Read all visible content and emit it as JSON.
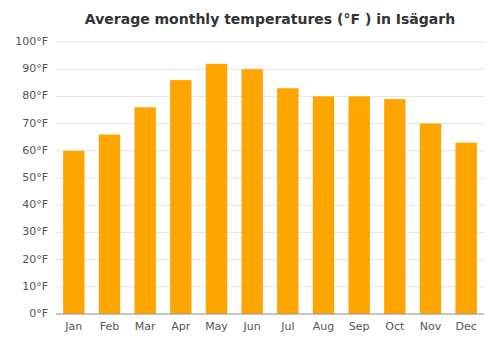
{
  "chart_data": {
    "type": "bar",
    "title": "Average monthly temperatures (°F ) in Isägarh",
    "categories": [
      "Jan",
      "Feb",
      "Mar",
      "Apr",
      "May",
      "Jun",
      "Jul",
      "Aug",
      "Sep",
      "Oct",
      "Nov",
      "Dec"
    ],
    "values": [
      60,
      66,
      76,
      86,
      92,
      90,
      83,
      80,
      80,
      79,
      70,
      63
    ],
    "color": "#FFA500",
    "ylim": [
      0,
      100
    ],
    "yticks": [
      {
        "value": 0,
        "label": "0°F"
      },
      {
        "value": 10,
        "label": "10°F"
      },
      {
        "value": 20,
        "label": "20°F"
      },
      {
        "value": 30,
        "label": "30°F"
      },
      {
        "value": 40,
        "label": "40°F"
      },
      {
        "value": 50,
        "label": "50°F"
      },
      {
        "value": 60,
        "label": "60°F"
      },
      {
        "value": 70,
        "label": "70°F"
      },
      {
        "value": 80,
        "label": "80°F"
      },
      {
        "value": 90,
        "label": "90°F"
      },
      {
        "value": 100,
        "label": "100°F"
      }
    ],
    "grid": true
  }
}
